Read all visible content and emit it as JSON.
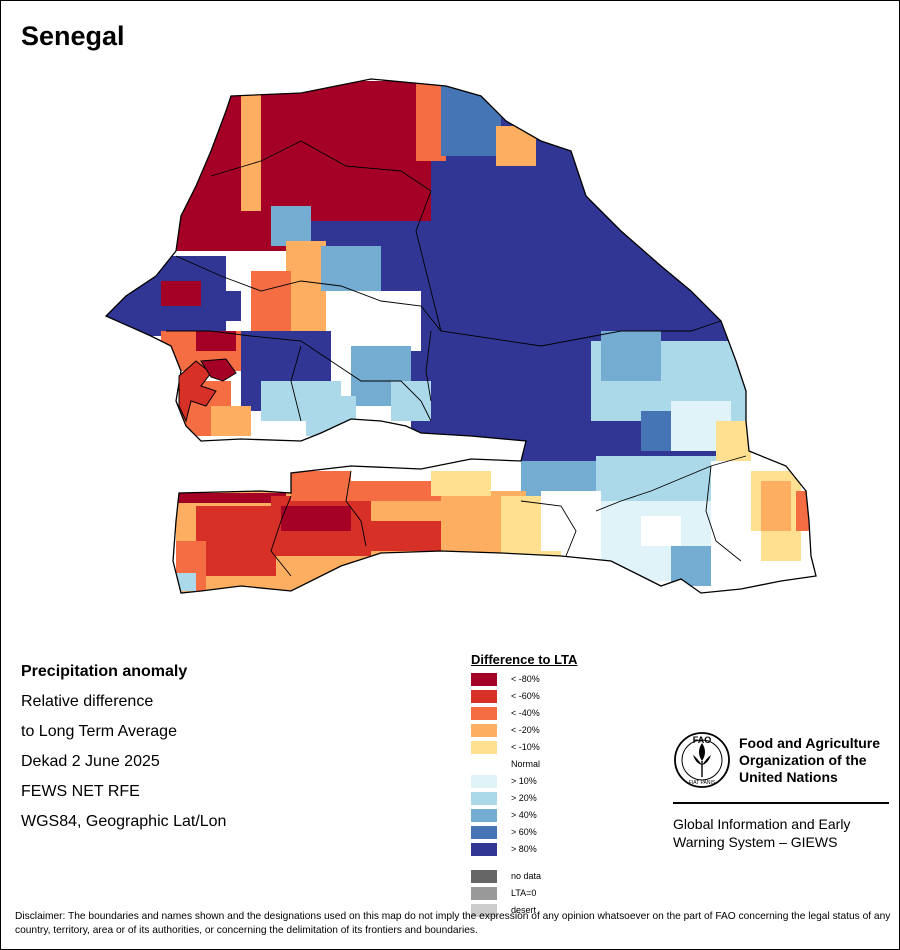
{
  "map_title": "Senegal",
  "info": {
    "line1": "Precipitation anomaly",
    "line2": "Relative difference",
    "line3": "to Long Term Average",
    "line4": "Dekad 2 June 2025",
    "line5": "FEWS NET RFE",
    "line6": "WGS84, Geographic Lat/Lon"
  },
  "legend": {
    "title": "Difference to LTA",
    "classes": [
      {
        "label": "< -80%",
        "color": "#a50026"
      },
      {
        "label": "< -60%",
        "color": "#d73027"
      },
      {
        "label": "< -40%",
        "color": "#f46d43"
      },
      {
        "label": "< -20%",
        "color": "#fdae61"
      },
      {
        "label": "< -10%",
        "color": "#fee090"
      },
      {
        "label": "Normal",
        "color": "#ffffff"
      },
      {
        "label": "> 10%",
        "color": "#e0f3f8"
      },
      {
        "label": "> 20%",
        "color": "#abd9e9"
      },
      {
        "label": "> 40%",
        "color": "#74add1"
      },
      {
        "label": "> 60%",
        "color": "#4575b4"
      },
      {
        "label": "> 80%",
        "color": "#313695"
      }
    ],
    "extra": [
      {
        "label": "no data",
        "color": "#666666"
      },
      {
        "label": "LTA=0",
        "color": "#999999"
      },
      {
        "label": "desert",
        "color": "#cccccc"
      }
    ]
  },
  "logo": {
    "fao_letters": "FAO",
    "motto": "FIAT PANIS",
    "org_line1": "Food and Agriculture",
    "org_line2": "Organization of the",
    "org_line3": "United Nations",
    "giews_line1": "Global Information and Early",
    "giews_line2": "Warning System – GIEWS"
  },
  "disclaimer": "Disclaimer: The boundaries and names shown and the designations used on this map do not imply the expression of any opinion whatsoever on the part of FAO concerning the legal status of any country, territory, area or of its authorities, or concerning the delimitation of its frontiers and boundaries."
}
